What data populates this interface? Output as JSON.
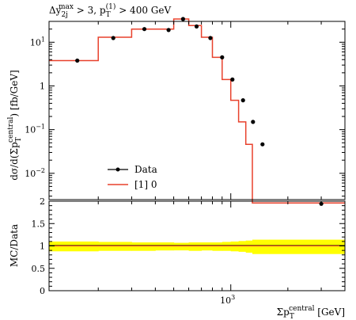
{
  "chart_data": [
    {
      "type": "line",
      "panel": "main",
      "title": "Δy_2j^max > 3, p_T^(1) > 400 GeV",
      "title_parts": {
        "dy": "Δy",
        "dy_sub": "2j",
        "dy_sup": "max",
        "mid": " > 3, p",
        "pt_sub": "T",
        "pt_sup": "(1)",
        "end": " > 400 GeV"
      },
      "ylabel": "dσ/d(Σp_T^central) [fb/GeV]",
      "ylabel_parts": {
        "a": "dσ/d(Σp",
        "sub": "T",
        "sup": "central",
        "b": ") [fb/GeV]"
      },
      "xlabel": "Σp_T^central [GeV]",
      "xlabel_parts": {
        "a": "Σp",
        "sub": "T",
        "sup": "central",
        "b": " [GeV]"
      },
      "xscale": "log",
      "yscale": "log",
      "xlim": [
        110,
        4000
      ],
      "ylim": [
        0.0025,
        30
      ],
      "xticks": [
        {
          "value": 1000,
          "base": "10",
          "exp": "3"
        }
      ],
      "yticks": [
        {
          "value": 10,
          "base": "10",
          "exp": "1"
        },
        {
          "value": 1,
          "base": "1",
          "exp": ""
        },
        {
          "value": 0.1,
          "base": "10",
          "exp": "−1"
        },
        {
          "value": 0.01,
          "base": "10",
          "exp": "−2"
        }
      ],
      "legend_position": "bottom-left",
      "series": [
        {
          "name": "Data",
          "style": "points",
          "color": "#000000",
          "x": [
            155,
            240,
            350,
            470,
            560,
            660,
            780,
            900,
            1020,
            1160,
            1310,
            1470,
            3000
          ],
          "y": [
            3.8,
            12.5,
            20,
            19,
            34,
            23,
            12.5,
            4.5,
            1.4,
            0.47,
            0.15,
            0.046,
            0.002
          ]
        },
        {
          "name": "[1] 0",
          "style": "histogram",
          "color": "#e8412c",
          "edges": [
            110,
            200,
            300,
            400,
            500,
            600,
            700,
            800,
            900,
            1000,
            1100,
            1200,
            1300,
            1600,
            4000
          ],
          "values": [
            3.8,
            13,
            20,
            20,
            34,
            24,
            13,
            4.5,
            1.4,
            0.47,
            0.15,
            0.046,
            0.0021,
            0.0021
          ]
        }
      ]
    },
    {
      "type": "area",
      "panel": "ratio",
      "ylabel": "MC/Data",
      "ylim": [
        0,
        2
      ],
      "yticks": [
        {
          "value": 0,
          "label": "0"
        },
        {
          "value": 0.5,
          "label": "0.5"
        },
        {
          "value": 1,
          "label": "1"
        },
        {
          "value": 1.5,
          "label": "1.5"
        },
        {
          "value": 2,
          "label": "2"
        }
      ],
      "band_color": "#ffff00",
      "edges": [
        110,
        200,
        300,
        400,
        500,
        600,
        700,
        800,
        900,
        1000,
        1100,
        1200,
        1300,
        1600,
        4000
      ],
      "band_low": [
        0.88,
        0.89,
        0.89,
        0.9,
        0.9,
        0.89,
        0.9,
        0.89,
        0.89,
        0.88,
        0.87,
        0.85,
        0.82,
        0.82
      ],
      "band_high": [
        1.1,
        1.09,
        1.08,
        1.08,
        1.07,
        1.08,
        1.08,
        1.08,
        1.09,
        1.1,
        1.11,
        1.12,
        1.14,
        1.14
      ],
      "ratio_values": [
        1,
        1,
        1,
        1,
        1,
        1,
        1,
        1,
        1,
        1,
        1,
        1,
        1,
        1
      ]
    }
  ]
}
